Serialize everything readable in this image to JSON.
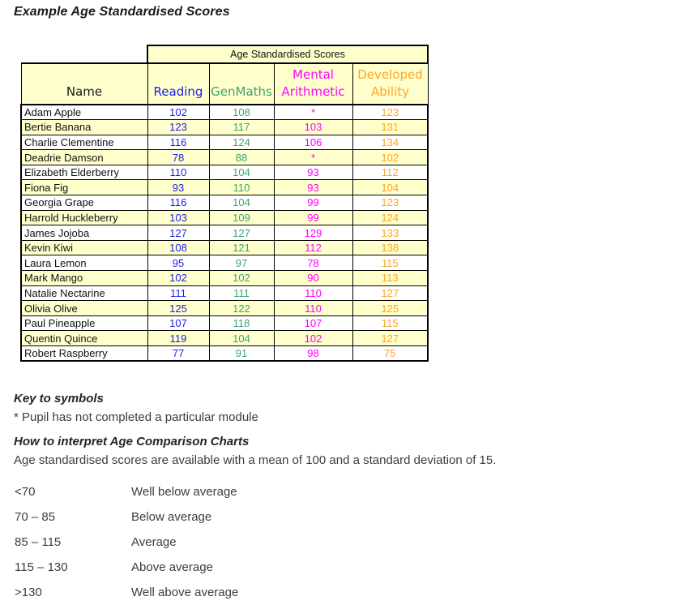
{
  "title": "Example Age Standardised Scores",
  "table": {
    "banner": "Age Standardised Scores",
    "columns": [
      {
        "label": "Name"
      },
      {
        "label": "Reading"
      },
      {
        "label": "GenMaths"
      },
      {
        "label": "Mental Arithmetic"
      },
      {
        "label": "Developed Ability"
      }
    ],
    "rows": [
      {
        "name": "Adam Apple",
        "reading": "102",
        "genmaths": "108",
        "mental": "*",
        "developed": "123"
      },
      {
        "name": "Bertie Banana",
        "reading": "123",
        "genmaths": "117",
        "mental": "103",
        "developed": "131"
      },
      {
        "name": "Charlie Clementine",
        "reading": "116",
        "genmaths": "124",
        "mental": "106",
        "developed": "134"
      },
      {
        "name": "Deadrie Damson",
        "reading": "78",
        "genmaths": "88",
        "mental": "*",
        "developed": "102"
      },
      {
        "name": "Elizabeth Elderberry",
        "reading": "110",
        "genmaths": "104",
        "mental": "93",
        "developed": "112"
      },
      {
        "name": "Fiona Fig",
        "reading": "93",
        "genmaths": "110",
        "mental": "93",
        "developed": "104"
      },
      {
        "name": "Georgia Grape",
        "reading": "116",
        "genmaths": "104",
        "mental": "99",
        "developed": "123"
      },
      {
        "name": "Harrold Huckleberry",
        "reading": "103",
        "genmaths": "109",
        "mental": "99",
        "developed": "124"
      },
      {
        "name": "James Jojoba",
        "reading": "127",
        "genmaths": "127",
        "mental": "129",
        "developed": "133"
      },
      {
        "name": "Kevin Kiwi",
        "reading": "108",
        "genmaths": "121",
        "mental": "112",
        "developed": "138"
      },
      {
        "name": "Laura Lemon",
        "reading": "95",
        "genmaths": "97",
        "mental": "78",
        "developed": "115"
      },
      {
        "name": "Mark Mango",
        "reading": "102",
        "genmaths": "102",
        "mental": "90",
        "developed": "113"
      },
      {
        "name": "Natalie Nectarine",
        "reading": "111",
        "genmaths": "111",
        "mental": "110",
        "developed": "127"
      },
      {
        "name": "Olivia Olive",
        "reading": "125",
        "genmaths": "122",
        "mental": "110",
        "developed": "125"
      },
      {
        "name": "Paul Pineapple",
        "reading": "107",
        "genmaths": "118",
        "mental": "107",
        "developed": "115"
      },
      {
        "name": "Quentin Quince",
        "reading": "119",
        "genmaths": "104",
        "mental": "102",
        "developed": "127"
      },
      {
        "name": "Robert Raspberry",
        "reading": "77",
        "genmaths": "91",
        "mental": "98",
        "developed": "75"
      }
    ]
  },
  "key": {
    "heading": "Key to symbols",
    "note": "* Pupil has not completed a particular module"
  },
  "interpretation": {
    "heading": "How to interpret Age Comparison Charts",
    "intro": "Age standardised scores are available with a mean of 100 and a standard deviation of 15.",
    "ranges": [
      {
        "range": "<70",
        "label": "Well below average"
      },
      {
        "range": "70 – 85",
        "label": "Below average"
      },
      {
        "range": "85 – 115",
        "label": "Average"
      },
      {
        "range": "115 – 130",
        "label": "Above average"
      },
      {
        "range": ">130",
        "label": "Well above average"
      }
    ]
  },
  "colors": {
    "highlight_bg": "#ffffcc",
    "reading": "#1c1cf0",
    "genmaths": "#3aa273",
    "mental_arithmetic": "#ff00ff",
    "developed_ability": "#ffa426",
    "border": "#000000"
  }
}
